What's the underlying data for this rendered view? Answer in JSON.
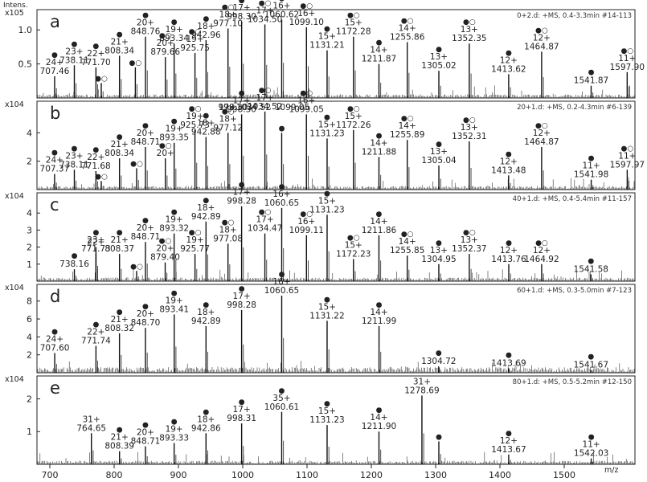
{
  "chart_data": {
    "type": "line",
    "ylabel": "Intens.",
    "xlabel": "m/z",
    "xlim": [
      680,
      1610
    ],
    "xticks": [
      700,
      800,
      900,
      1000,
      1100,
      1200,
      1300,
      1400,
      1500
    ],
    "panels": [
      {
        "letter": "a",
        "info": "0+2.d: +MS, 0.4-3.3min #14-113",
        "multiplier": "x10^5",
        "ylim": [
          0,
          1.25
        ],
        "yticks": [
          "0.5",
          "1.0"
        ],
        "peaks": [
          {
            "x": 707.46,
            "y": 0.32,
            "label": "707.46",
            "charge": "24+",
            "marker": "●"
          },
          {
            "x": 738.11,
            "y": 0.48,
            "label": "738.11",
            "charge": "23+",
            "marker": "●"
          },
          {
            "x": 771.7,
            "y": 0.45,
            "label": "771.70",
            "charge": "22+",
            "marker": "●"
          },
          {
            "x": 780.0,
            "y": 0.22,
            "label": "",
            "charge": "",
            "marker": "●○"
          },
          {
            "x": 808.34,
            "y": 0.62,
            "label": "808.34",
            "charge": "21+",
            "marker": "●"
          },
          {
            "x": 833.0,
            "y": 0.45,
            "label": "",
            "charge": "",
            "marker": "●○"
          },
          {
            "x": 848.76,
            "y": 0.9,
            "label": "848.76",
            "charge": "20+",
            "marker": "●"
          },
          {
            "x": 879.66,
            "y": 0.6,
            "label": "879.66",
            "charge": "20+",
            "marker": "●○"
          },
          {
            "x": 893.34,
            "y": 0.8,
            "label": "893.34",
            "charge": "19+",
            "marker": "●"
          },
          {
            "x": 925.75,
            "y": 0.66,
            "label": "925.75",
            "charge": "19+",
            "marker": "●○"
          },
          {
            "x": 942.96,
            "y": 0.85,
            "label": "942.96",
            "charge": "18+",
            "marker": "●"
          },
          {
            "x": 977.1,
            "y": 1.02,
            "label": "977.10",
            "charge": "18+",
            "marker": "●○"
          },
          {
            "x": 998.3,
            "y": 1.12,
            "label": "998.30",
            "charge": "17+",
            "marker": "●"
          },
          {
            "x": 1034.5,
            "y": 1.08,
            "label": "1034.50",
            "charge": "17+",
            "marker": "●○"
          },
          {
            "x": 1060.62,
            "y": 1.15,
            "label": "1060.62",
            "charge": "16+",
            "marker": "●"
          },
          {
            "x": 1099.1,
            "y": 1.04,
            "label": "1099.10",
            "charge": "16+",
            "marker": "●○"
          },
          {
            "x": 1131.21,
            "y": 0.7,
            "label": "1131.21",
            "charge": "15+",
            "marker": "●"
          },
          {
            "x": 1172.28,
            "y": 0.9,
            "label": "1172.28",
            "charge": "15+",
            "marker": "●○"
          },
          {
            "x": 1211.87,
            "y": 0.5,
            "label": "1211.87",
            "charge": "14+",
            "marker": "●"
          },
          {
            "x": 1255.86,
            "y": 0.82,
            "label": "1255.86",
            "charge": "14+",
            "marker": "●○"
          },
          {
            "x": 1305.02,
            "y": 0.4,
            "label": "1305.02",
            "charge": "13+",
            "marker": "●"
          },
          {
            "x": 1352.35,
            "y": 0.8,
            "label": "1352.35",
            "charge": "13+",
            "marker": "●○"
          },
          {
            "x": 1413.62,
            "y": 0.35,
            "label": "1413.62",
            "charge": "12+",
            "marker": "●"
          },
          {
            "x": 1464.87,
            "y": 0.68,
            "label": "1464.87",
            "charge": "12+",
            "marker": "●○"
          },
          {
            "x": 1541.87,
            "y": 0.18,
            "label": "1541.87",
            "charge": "",
            "marker": "●"
          },
          {
            "x": 1597.9,
            "y": 0.38,
            "label": "1597.90",
            "charge": "11+",
            "marker": "●○"
          }
        ]
      },
      {
        "letter": "b",
        "info": "20+1.d: +MS, 0.2-4.3min #6-139",
        "multiplier": "x10^4",
        "ylim": [
          0,
          6.0
        ],
        "yticks": [
          "2",
          "4"
        ],
        "peaks": [
          {
            "x": 707.37,
            "y": 1.1,
            "label": "707.37",
            "charge": "24+",
            "marker": "●"
          },
          {
            "x": 738.11,
            "y": 1.4,
            "label": "738.11",
            "charge": "23+",
            "marker": "●"
          },
          {
            "x": 771.68,
            "y": 1.3,
            "label": "771.68",
            "charge": "22+",
            "marker": "●"
          },
          {
            "x": 780.0,
            "y": 0.6,
            "label": "",
            "charge": "",
            "marker": "●○"
          },
          {
            "x": 808.34,
            "y": 2.2,
            "label": "808.34",
            "charge": "21+",
            "marker": "●"
          },
          {
            "x": 835.0,
            "y": 1.5,
            "label": "",
            "charge": "",
            "marker": "●○"
          },
          {
            "x": 848.71,
            "y": 3.0,
            "label": "848.71",
            "charge": "20+",
            "marker": "●"
          },
          {
            "x": 879.66,
            "y": 2.2,
            "label": "",
            "charge": "20+",
            "marker": "●○"
          },
          {
            "x": 893.35,
            "y": 3.3,
            "label": "893.35",
            "charge": "19+",
            "marker": "●"
          },
          {
            "x": 925.73,
            "y": 4.2,
            "label": "925.73",
            "charge": "19+",
            "marker": "●○"
          },
          {
            "x": 942.88,
            "y": 3.7,
            "label": "942.88",
            "charge": "18+",
            "marker": "●"
          },
          {
            "x": 977.12,
            "y": 4.0,
            "label": "977.12",
            "charge": "18+",
            "marker": "●○"
          },
          {
            "x": 998.3,
            "y": 5.3,
            "label": "998.30",
            "charge": "17+",
            "marker": "●"
          },
          {
            "x": 1034.52,
            "y": 5.5,
            "label": "1034.52",
            "charge": "17+",
            "marker": "●○"
          },
          {
            "x": 1060.62,
            "y": 4.0,
            "label": "",
            "charge": "",
            "marker": "●"
          },
          {
            "x": 1099.05,
            "y": 5.3,
            "label": "1099.05",
            "charge": "16+",
            "marker": "●○"
          },
          {
            "x": 1131.23,
            "y": 3.6,
            "label": "1131.23",
            "charge": "15+",
            "marker": "●"
          },
          {
            "x": 1172.26,
            "y": 4.2,
            "label": "1172.26",
            "charge": "15+",
            "marker": "●○"
          },
          {
            "x": 1211.88,
            "y": 2.3,
            "label": "1211.88",
            "charge": "14+",
            "marker": "●"
          },
          {
            "x": 1255.89,
            "y": 3.5,
            "label": "1255.89",
            "charge": "14+",
            "marker": "●○"
          },
          {
            "x": 1305.04,
            "y": 1.7,
            "label": "1305.04",
            "charge": "13+",
            "marker": "●"
          },
          {
            "x": 1352.31,
            "y": 3.4,
            "label": "1352.31",
            "charge": "13+",
            "marker": "●○"
          },
          {
            "x": 1413.48,
            "y": 1.0,
            "label": "1413.48",
            "charge": "12+",
            "marker": "●"
          },
          {
            "x": 1464.87,
            "y": 3.0,
            "label": "1464.87",
            "charge": "12+",
            "marker": "●○"
          },
          {
            "x": 1541.98,
            "y": 0.7,
            "label": "1541.98",
            "charge": "11+",
            "marker": "●"
          },
          {
            "x": 1597.97,
            "y": 1.4,
            "label": "1597.97",
            "charge": "11+",
            "marker": "●○"
          }
        ],
        "extra_labels": [
          {
            "x": 1003,
            "text": "17+1034.52"
          },
          {
            "x": 985,
            "text": "998.30"
          },
          {
            "x": 1077,
            "text": "1099.05"
          }
        ]
      },
      {
        "letter": "c",
        "info": "40+1.d: +MS, 0.4-5.4min #11-157",
        "multiplier": "x10^4",
        "ylim": [
          0,
          5.0
        ],
        "yticks": [
          "1",
          "2",
          "3",
          "4"
        ],
        "peaks": [
          {
            "x": 738.16,
            "y": 0.7,
            "label": "738.16",
            "charge": "",
            "marker": "●"
          },
          {
            "x": 771.73,
            "y": 1.6,
            "label": "771.73",
            "charge": "23+",
            "marker": "●"
          },
          {
            "x": 771.73,
            "y": 2.0,
            "label": "",
            "charge": "22+",
            "marker": ""
          },
          {
            "x": 808.37,
            "y": 1.6,
            "label": "808.37",
            "charge": "21+",
            "marker": "●"
          },
          {
            "x": 835.0,
            "y": 0.6,
            "label": "",
            "charge": "",
            "marker": "●○"
          },
          {
            "x": 848.71,
            "y": 2.3,
            "label": "848.71",
            "charge": "20+",
            "marker": "●"
          },
          {
            "x": 879.4,
            "y": 1.1,
            "label": "879.40",
            "charge": "20+",
            "marker": "●○"
          },
          {
            "x": 893.32,
            "y": 2.8,
            "label": "893.32",
            "charge": "19+",
            "marker": "●"
          },
          {
            "x": 925.77,
            "y": 1.6,
            "label": "925.77",
            "charge": "19+",
            "marker": "●○"
          },
          {
            "x": 942.89,
            "y": 3.5,
            "label": "942.89",
            "charge": "18+",
            "marker": "●"
          },
          {
            "x": 977.08,
            "y": 2.2,
            "label": "977.08",
            "charge": "18+",
            "marker": "●○"
          },
          {
            "x": 998.28,
            "y": 4.4,
            "label": "998.28",
            "charge": "17+",
            "marker": "●"
          },
          {
            "x": 1034.47,
            "y": 2.8,
            "label": "1034.47",
            "charge": "17+",
            "marker": "●○"
          },
          {
            "x": 1060.65,
            "y": 4.3,
            "label": "1060.65",
            "charge": "16+",
            "marker": "●"
          },
          {
            "x": 1099.11,
            "y": 2.7,
            "label": "1099.11",
            "charge": "16+",
            "marker": "●○"
          },
          {
            "x": 1131.23,
            "y": 3.9,
            "label": "1131.23",
            "charge": "15+",
            "marker": "●"
          },
          {
            "x": 1172.23,
            "y": 1.3,
            "label": "1172.23",
            "charge": "15+",
            "marker": "●○"
          },
          {
            "x": 1211.86,
            "y": 2.7,
            "label": "1211.86",
            "charge": "14+",
            "marker": "●"
          },
          {
            "x": 1255.85,
            "y": 1.5,
            "label": "1255.85",
            "charge": "14+",
            "marker": "●○"
          },
          {
            "x": 1304.95,
            "y": 1.0,
            "label": "1304.95",
            "charge": "13+",
            "marker": "●"
          },
          {
            "x": 1352.37,
            "y": 1.6,
            "label": "1352.37",
            "charge": "13+",
            "marker": "●○"
          },
          {
            "x": 1413.76,
            "y": 1.0,
            "label": "1413.76",
            "charge": "12+",
            "marker": "●"
          },
          {
            "x": 1464.92,
            "y": 1.0,
            "label": "1464.92",
            "charge": "12+",
            "marker": "●○"
          },
          {
            "x": 1541.58,
            "y": 0.4,
            "label": "1541.58",
            "charge": "",
            "marker": "●"
          }
        ]
      },
      {
        "letter": "d",
        "info": "60+1.d: +MS, 0.3-5.0min #7-123",
        "multiplier": "x10^4",
        "ylim": [
          0,
          9.5
        ],
        "yticks": [
          "2",
          "4",
          "6",
          "8"
        ],
        "peaks": [
          {
            "x": 707.6,
            "y": 2.2,
            "label": "707.60",
            "charge": "24+",
            "marker": "●"
          },
          {
            "x": 771.74,
            "y": 3.0,
            "label": "771.74",
            "charge": "22+",
            "marker": "●"
          },
          {
            "x": 808.32,
            "y": 4.4,
            "label": "808.32",
            "charge": "21+",
            "marker": "●"
          },
          {
            "x": 848.7,
            "y": 5.0,
            "label": "848.70",
            "charge": "20+",
            "marker": "●"
          },
          {
            "x": 893.41,
            "y": 6.5,
            "label": "893.41",
            "charge": "19+",
            "marker": "●"
          },
          {
            "x": 942.89,
            "y": 5.2,
            "label": "942.89",
            "charge": "18+",
            "marker": "●"
          },
          {
            "x": 998.28,
            "y": 7.0,
            "label": "998.28",
            "charge": "17+",
            "marker": "●"
          },
          {
            "x": 1060.65,
            "y": 8.6,
            "label": "1060.65",
            "charge": "16+",
            "marker": "●"
          },
          {
            "x": 1131.22,
            "y": 5.8,
            "label": "1131.22",
            "charge": "15+",
            "marker": "●"
          },
          {
            "x": 1211.99,
            "y": 5.2,
            "label": "1211.99",
            "charge": "14+",
            "marker": "●"
          },
          {
            "x": 1304.72,
            "y": 0.7,
            "label": "1304.72",
            "charge": "",
            "marker": "●"
          },
          {
            "x": 1413.69,
            "y": 0.5,
            "label": "1413.69",
            "charge": "",
            "marker": "●"
          },
          {
            "x": 1541.67,
            "y": 0.3,
            "label": "1541.67",
            "charge": "",
            "marker": "●"
          }
        ]
      },
      {
        "letter": "e",
        "info": "80+1.d: +MS, 0.5-5.2min #12-150",
        "multiplier": "x10^4",
        "ylim": [
          0,
          2.6
        ],
        "yticks": [
          "1",
          "2"
        ],
        "peaks": [
          {
            "x": 764.65,
            "y": 0.95,
            "label": "764.65",
            "charge": "31+",
            "marker": ""
          },
          {
            "x": 808.39,
            "y": 0.4,
            "label": "808.39",
            "charge": "21+",
            "marker": "●"
          },
          {
            "x": 848.71,
            "y": 0.55,
            "label": "848.71",
            "charge": "20+",
            "marker": "●"
          },
          {
            "x": 893.33,
            "y": 0.65,
            "label": "893.33",
            "charge": "19+",
            "marker": "●"
          },
          {
            "x": 942.86,
            "y": 0.95,
            "label": "942.86",
            "charge": "18+",
            "marker": "●"
          },
          {
            "x": 998.31,
            "y": 1.25,
            "label": "998.31",
            "charge": "17+",
            "marker": "●"
          },
          {
            "x": 1060.61,
            "y": 1.6,
            "label": "1060.61",
            "charge": "35+",
            "marker": "●"
          },
          {
            "x": 1131.23,
            "y": 1.2,
            "label": "1131.23",
            "charge": "15+",
            "marker": "●"
          },
          {
            "x": 1211.9,
            "y": 1.0,
            "label": "1211.90",
            "charge": "14+",
            "marker": "●"
          },
          {
            "x": 1278.69,
            "y": 2.1,
            "label": "1278.69",
            "charge": "31+",
            "marker": ""
          },
          {
            "x": 1305.0,
            "y": 0.7,
            "label": "",
            "charge": "",
            "marker": "●"
          },
          {
            "x": 1413.67,
            "y": 0.3,
            "label": "1413.67",
            "charge": "12+",
            "marker": "●"
          },
          {
            "x": 1542.03,
            "y": 0.18,
            "label": "1542.03",
            "charge": "11+",
            "marker": "●"
          }
        ]
      }
    ]
  }
}
